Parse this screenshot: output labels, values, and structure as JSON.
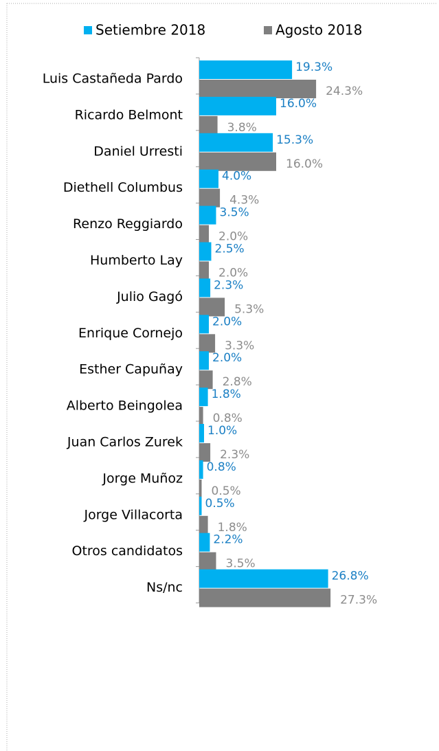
{
  "chart_data": {
    "type": "bar",
    "orientation": "horizontal",
    "categories": [
      "Luis Castañeda Pardo",
      "Ricardo Belmont",
      "Daniel Urresti",
      "Diethell Columbus",
      "Renzo Reggiardo",
      "Humberto Lay",
      "Julio Gagó",
      "Enrique Cornejo",
      "Esther Capuñay",
      "Alberto Beingolea",
      "Juan Carlos Zurek",
      "Jorge Muñoz",
      "Jorge Villacorta",
      "Otros candidatos",
      "Ns/nc"
    ],
    "series": [
      {
        "name": "Setiembre 2018",
        "color": "#00b0f0",
        "label_color": "#1a7fc4",
        "values": [
          19.3,
          16.0,
          15.3,
          4.0,
          3.5,
          2.5,
          2.3,
          2.0,
          2.0,
          1.8,
          1.0,
          0.8,
          0.5,
          2.2,
          26.8
        ],
        "value_labels": [
          "19.3%",
          "16.0%",
          "15.3%",
          "4.0%",
          "3.5%",
          "2.5%",
          "2.3%",
          "2.0%",
          "2.0%",
          "1.8%",
          "1.0%",
          "0.8%",
          "0.5%",
          "2.2%",
          "26.8%"
        ]
      },
      {
        "name": "Agosto 2018",
        "color": "#7f7f7f",
        "label_color": "#8c8c8c",
        "values": [
          24.3,
          3.8,
          16.0,
          4.3,
          2.0,
          2.0,
          5.3,
          3.3,
          2.8,
          0.8,
          2.3,
          0.5,
          1.8,
          3.5,
          27.3
        ],
        "value_labels": [
          "24.3%",
          "3.8%",
          "16.0%",
          "4.3%",
          "2.0%",
          "2.0%",
          "5.3%",
          "3.3%",
          "2.8%",
          "0.8%",
          "2.3%",
          "0.5%",
          "1.8%",
          "3.5%",
          "27.3%"
        ]
      }
    ],
    "xlim": [
      0,
      30
    ],
    "legend": "top"
  }
}
